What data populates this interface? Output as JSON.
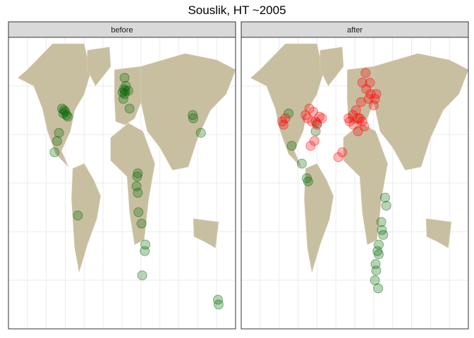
{
  "chart_data": {
    "type": "scatter",
    "title": "Souslik, HT ~2005",
    "xlabel": "",
    "ylabel": "",
    "grid": true,
    "panels": [
      {
        "label": "before",
        "series": [
          {
            "color": "#006400",
            "points": [
              [
                -93,
                43
              ],
              [
                -90,
                44
              ],
              [
                -88,
                42
              ],
              [
                -92,
                45
              ],
              [
                -86,
                41
              ],
              [
                -95,
                46
              ],
              [
                -100,
                31
              ],
              [
                -103,
                26
              ],
              [
                -107,
                19
              ],
              [
                -70,
                -20
              ],
              [
                1,
                56
              ],
              [
                3,
                58
              ],
              [
                4,
                55
              ],
              [
                6,
                60
              ],
              [
                5,
                57
              ],
              [
                2,
                52
              ],
              [
                10,
                57
              ],
              [
                4,
                65
              ],
              [
                12,
                46
              ],
              [
                25,
                6
              ],
              [
                24,
                4
              ],
              [
                23,
                -2
              ],
              [
                25,
                -6
              ],
              [
                26,
                -18
              ],
              [
                31,
                -25
              ],
              [
                37,
                -38
              ],
              [
                36,
                -42
              ],
              [
                32,
                -57
              ],
              [
                112,
                42
              ],
              [
                113,
                40
              ],
              [
                125,
                31
              ],
              [
                152,
                -72
              ],
              [
                153,
                -75
              ]
            ]
          }
        ]
      },
      {
        "label": "after",
        "series": [
          {
            "color": "#006400",
            "points": [
              [
                -105,
                43
              ],
              [
                -100,
                23
              ],
              [
                -84,
                12
              ],
              [
                -76,
                3
              ],
              [
                -74,
                1
              ],
              [
                48,
                -9
              ],
              [
                50,
                -14
              ],
              [
                42,
                -24
              ],
              [
                43,
                -29
              ],
              [
                45,
                -32
              ],
              [
                38,
                -38
              ],
              [
                36,
                -42
              ],
              [
                33,
                -50
              ],
              [
                34,
                -54
              ],
              [
                32,
                -60
              ],
              [
                37,
                -65
              ],
              [
                38,
                -44
              ],
              [
                -60,
                37
              ],
              [
                -62,
                32
              ]
            ]
          },
          {
            "color": "#FF0000",
            "points": [
              [
                -72,
                46
              ],
              [
                -66,
                44
              ],
              [
                -62,
                38
              ],
              [
                -56,
                41
              ],
              [
                -75,
                40
              ],
              [
                -68,
                38
              ],
              [
                -60,
                36
              ],
              [
                -78,
                42
              ],
              [
                -52,
                40
              ],
              [
                -115,
                38
              ],
              [
                -113,
                36
              ],
              [
                -110,
                40
              ],
              [
                -64,
                26
              ],
              [
                -70,
                23
              ],
              [
                -8,
                38
              ],
              [
                -2,
                36
              ],
              [
                5,
                32
              ],
              [
                -10,
                40
              ],
              [
                2,
                45
              ],
              [
                12,
                38
              ],
              [
                8,
                40
              ],
              [
                15,
                35
              ],
              [
                10,
                50
              ],
              [
                25,
                55
              ],
              [
                30,
                48
              ],
              [
                18,
                58
              ],
              [
                24,
                62
              ],
              [
                12,
                62
              ],
              [
                22,
                52
              ],
              [
                32,
                52
              ],
              [
                17,
                68
              ],
              [
                34,
                55
              ],
              [
                5,
                40
              ],
              [
                -3,
                42
              ],
              [
                -20,
                19
              ],
              [
                -26,
                16
              ]
            ]
          }
        ]
      }
    ]
  }
}
